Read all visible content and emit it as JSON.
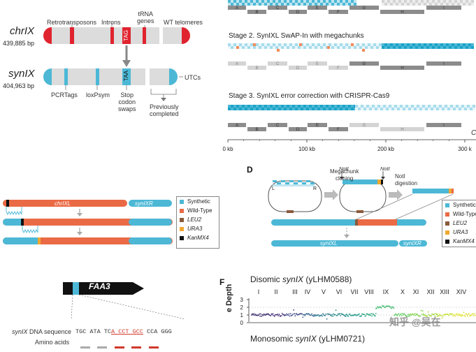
{
  "panelA": {
    "chr_title": "chrIX",
    "chr_bp": "439,885 bp",
    "syn_title": "synIX",
    "syn_bp": "404,963 bp",
    "top_labels": {
      "retrotransposons": "Retrotransposons",
      "introns": "Introns",
      "trna": "tRNA\ngenes",
      "wt_telomeres": "WT telomeres"
    },
    "tag_codon": "TAG",
    "taa_codon": "TAA",
    "bottom_labels": {
      "pcrtags": "PCRTags",
      "loxpsym": "loxPsym",
      "stop_codon_swaps": "Stop\ncodon\nswaps",
      "previously_completed": "Previously\ncompleted",
      "utcs": "UTCs"
    }
  },
  "panelB": {
    "stage2": "Stage 2. SynIXL SwAP-In with megachunks",
    "stage3": "Stage 3. SynIXL error correction with CRISPR-Cas9",
    "chunks": [
      "A",
      "B",
      "C",
      "D",
      "E",
      "F",
      "G",
      "H",
      "I"
    ],
    "axis_ticks": [
      "0 kb",
      "100 kb",
      "200 kb",
      "300 k"
    ],
    "axis_tick_values": [
      0,
      100,
      200,
      300
    ],
    "axis_max_kb": 318,
    "clipped_letter": "C"
  },
  "panelC": {
    "bar1_label": "chrIXL",
    "bar1_right": "synIXR",
    "legend": [
      {
        "label": "Synthetic",
        "color": "#4cb8d6",
        "italic": false
      },
      {
        "label": "Wild-Type",
        "color": "#ea6a45",
        "italic": false
      },
      {
        "label": "LEU2",
        "color": "#8a5a3b",
        "italic": true
      },
      {
        "label": "URA3",
        "color": "#f0a830",
        "italic": true
      },
      {
        "label": "KanMX4",
        "color": "#111111",
        "italic": true
      }
    ]
  },
  "panelD": {
    "letter": "D",
    "megachunk_cloning": "Megachunk\ncloning",
    "noti1": "NotI",
    "noti2": "NotI",
    "noti_digestion": "NotI\ndigestion",
    "plasmid_L": "L",
    "plasmid_R": "R",
    "bottom_left": "synIXL",
    "bottom_right": "synIXR",
    "legend": [
      {
        "label": "Synthetic",
        "color": "#4cb8d6",
        "italic": false
      },
      {
        "label": "Wild-Type",
        "color": "#ea6a45",
        "italic": false
      },
      {
        "label": "LEU2",
        "color": "#8a5a3b",
        "italic": true
      },
      {
        "label": "URA3",
        "color": "#f0a830",
        "italic": true
      },
      {
        "label": "KanMX4",
        "color": "#111111",
        "italic": true
      }
    ]
  },
  "panelE": {
    "gene": "FAA3",
    "dna_label": "synIX DNA sequence",
    "dna_seq_black1": "TGC ATA TC",
    "dna_seq_red": "A CCT GCC",
    "dna_seq_black2": " CCA GGG",
    "amino_label": "Amino acids"
  },
  "panelF": {
    "letter": "F",
    "disomic_title": "Disomic synIX (yLHM0588)",
    "monosomic_title": "Monosomic synIX (yLHM0721)",
    "roman": [
      "I",
      "II",
      "III",
      "IV",
      "V",
      "VI",
      "VII",
      "VIII",
      "IX",
      "X",
      "XI",
      "XII",
      "XIII",
      "XIV"
    ],
    "y_ticks": [
      "3",
      "2",
      "1",
      "0"
    ],
    "y_label": "e Depth",
    "watermark": "知乎 @吴在"
  }
}
